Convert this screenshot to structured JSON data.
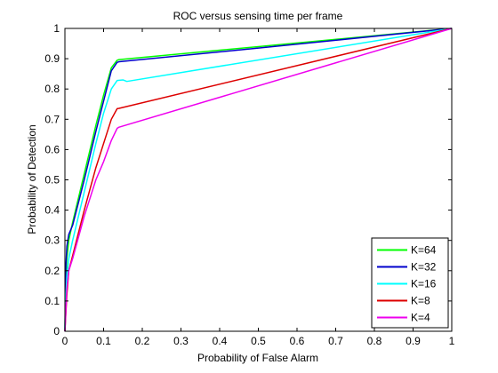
{
  "chart_data": {
    "type": "line",
    "title": "ROC versus sensing time per frame",
    "xlabel": "Probability of False Alarm",
    "ylabel": "Probability of Detection",
    "xlim": [
      0,
      1
    ],
    "ylim": [
      0,
      1
    ],
    "xticks": [
      "0",
      "0.1",
      "0.2",
      "0.3",
      "0.4",
      "0.5",
      "0.6",
      "0.7",
      "0.8",
      "0.9",
      "1"
    ],
    "yticks": [
      "0",
      "0.1",
      "0.2",
      "0.3",
      "0.4",
      "0.5",
      "0.6",
      "0.7",
      "0.8",
      "0.9",
      "1"
    ],
    "grid": false,
    "legend_position": "bottom-right",
    "series": [
      {
        "name": "K=64",
        "color": "#00ff00",
        "x": [
          0,
          0.002,
          0.005,
          0.01,
          0.02,
          0.05,
          0.08,
          0.1,
          0.12,
          0.135,
          0.14,
          0.5,
          1.0
        ],
        "y": [
          0,
          0.16,
          0.24,
          0.3,
          0.36,
          0.52,
          0.68,
          0.78,
          0.87,
          0.895,
          0.897,
          0.94,
          1.0
        ]
      },
      {
        "name": "K=32",
        "color": "#0000cc",
        "x": [
          0,
          0.002,
          0.005,
          0.01,
          0.02,
          0.05,
          0.08,
          0.1,
          0.12,
          0.135,
          0.14,
          0.5,
          1.0
        ],
        "y": [
          0,
          0.2,
          0.28,
          0.32,
          0.35,
          0.5,
          0.66,
          0.76,
          0.86,
          0.888,
          0.89,
          0.935,
          1.0
        ]
      },
      {
        "name": "K=16",
        "color": "#00ffff",
        "x": [
          0,
          0.002,
          0.005,
          0.01,
          0.02,
          0.05,
          0.08,
          0.1,
          0.12,
          0.135,
          0.15,
          0.16,
          1.0
        ],
        "y": [
          0,
          0.1,
          0.18,
          0.24,
          0.3,
          0.46,
          0.62,
          0.72,
          0.8,
          0.828,
          0.83,
          0.825,
          1.0
        ]
      },
      {
        "name": "K=8",
        "color": "#dd0000",
        "x": [
          0,
          0.005,
          0.01,
          0.02,
          0.05,
          0.08,
          0.1,
          0.12,
          0.135,
          0.14,
          1.0
        ],
        "y": [
          0,
          0.12,
          0.2,
          0.25,
          0.4,
          0.54,
          0.62,
          0.7,
          0.735,
          0.736,
          1.0
        ]
      },
      {
        "name": "K=4",
        "color": "#ee00ee",
        "x": [
          0,
          0.005,
          0.01,
          0.02,
          0.05,
          0.08,
          0.1,
          0.12,
          0.135,
          0.14,
          1.0
        ],
        "y": [
          0,
          0.14,
          0.2,
          0.24,
          0.38,
          0.5,
          0.56,
          0.63,
          0.67,
          0.674,
          1.0
        ]
      }
    ]
  }
}
